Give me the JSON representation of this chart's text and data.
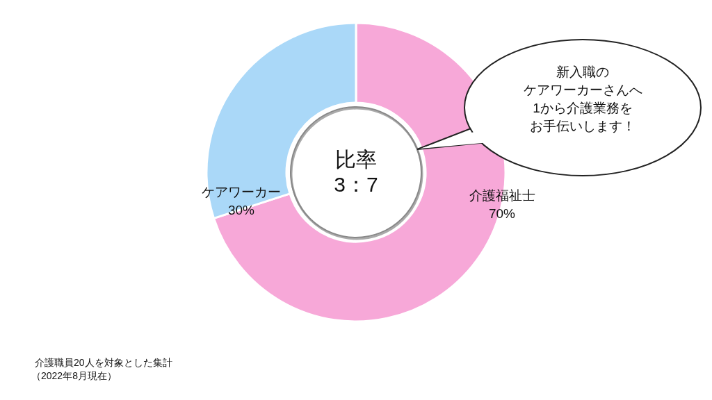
{
  "chart_data": {
    "type": "donut",
    "categories": [
      "介護福祉士",
      "ケアワーカー"
    ],
    "values": [
      70,
      30
    ],
    "value_labels": [
      "70%",
      "30%"
    ],
    "colors": [
      "#f7a8d8",
      "#aad8f8"
    ],
    "annotations": [
      "比率",
      "3：7",
      "新入職の",
      "ケアワーカーさんへ",
      "1から介護業務を",
      "お手伝いします！",
      "介護職員20人を対象とした集計",
      "（2022年8月現在）"
    ]
  }
}
